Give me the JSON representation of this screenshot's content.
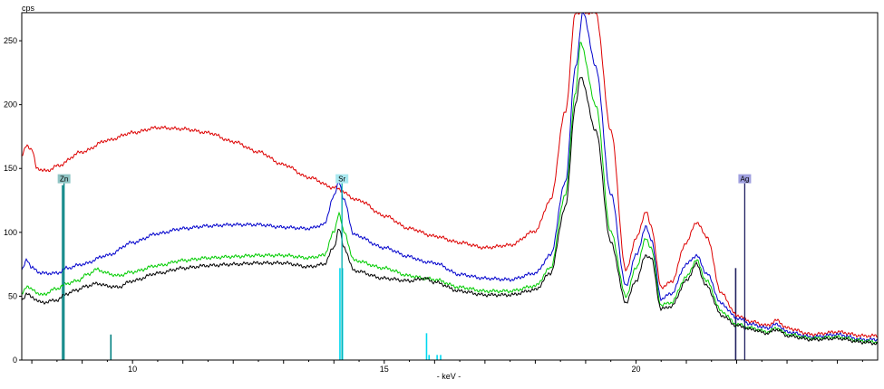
{
  "chart_data": {
    "type": "line",
    "title": "",
    "ylabel": "cps",
    "xlabel": "- keV -",
    "xlim": [
      7.8,
      24.8
    ],
    "ylim": [
      0,
      272
    ],
    "x_ticks": [
      10,
      15,
      20
    ],
    "y_ticks": [
      0,
      50,
      100,
      150,
      200,
      250
    ],
    "grid": false,
    "legend": "none",
    "series": [
      {
        "color": "#dd0000",
        "x": [
          7.8,
          7.9,
          8.0,
          8.1,
          8.3,
          8.5,
          9.0,
          9.5,
          10.0,
          10.5,
          11.0,
          11.5,
          12.0,
          12.5,
          13.0,
          13.5,
          14.0,
          14.5,
          15.0,
          15.5,
          16.0,
          16.5,
          17.0,
          17.5,
          18.0,
          18.3,
          18.6,
          18.8,
          18.9,
          19.2,
          19.5,
          19.8,
          20.0,
          20.2,
          20.3,
          20.5,
          20.7,
          21.0,
          21.2,
          21.4,
          21.7,
          22.0,
          22.3,
          22.6,
          22.8,
          23.0,
          23.5,
          24.0,
          24.5,
          24.8
        ],
        "values": [
          160,
          168,
          165,
          150,
          148,
          152,
          163,
          172,
          178,
          182,
          181,
          178,
          171,
          163,
          153,
          143,
          135,
          125,
          113,
          103,
          97,
          92,
          88,
          90,
          101,
          125,
          195,
          272,
          272,
          272,
          180,
          70,
          95,
          116,
          105,
          57,
          61,
          92,
          108,
          97,
          52,
          35,
          30,
          27,
          31,
          25,
          20,
          22,
          19,
          19
        ]
      },
      {
        "color": "#0000cc",
        "x": [
          7.8,
          7.9,
          8.0,
          8.2,
          8.5,
          8.7,
          9.0,
          9.5,
          10.0,
          10.5,
          11.0,
          11.5,
          12.0,
          12.5,
          13.0,
          13.5,
          13.8,
          14.0,
          14.1,
          14.2,
          14.4,
          15.0,
          15.5,
          15.8,
          16.0,
          16.5,
          17.0,
          17.5,
          18.0,
          18.3,
          18.6,
          18.8,
          18.95,
          19.2,
          19.5,
          19.8,
          20.0,
          20.2,
          20.3,
          20.5,
          20.7,
          21.0,
          21.2,
          21.4,
          21.7,
          22.0,
          22.3,
          22.6,
          22.8,
          23.0,
          23.5,
          24.0,
          24.5,
          24.8
        ],
        "values": [
          70,
          79,
          72,
          68,
          68,
          72,
          75,
          82,
          92,
          99,
          103,
          105,
          106,
          106,
          104,
          103,
          106,
          128,
          140,
          125,
          98,
          88,
          81,
          77,
          76,
          67,
          64,
          63,
          68,
          82,
          140,
          230,
          272,
          230,
          130,
          58,
          82,
          104,
          95,
          48,
          52,
          75,
          82,
          68,
          44,
          33,
          28,
          25,
          28,
          22,
          18,
          20,
          16,
          16
        ]
      },
      {
        "color": "#00cc00",
        "x": [
          7.8,
          7.9,
          8.0,
          8.2,
          8.5,
          8.7,
          8.9,
          9.1,
          9.3,
          9.5,
          9.7,
          10.0,
          10.5,
          11.0,
          11.5,
          12.0,
          12.5,
          13.0,
          13.5,
          13.8,
          14.0,
          14.1,
          14.2,
          14.4,
          15.0,
          15.5,
          15.8,
          16.0,
          16.5,
          17.0,
          17.5,
          18.0,
          18.3,
          18.6,
          18.8,
          18.9,
          19.2,
          19.5,
          19.8,
          20.0,
          20.2,
          20.3,
          20.5,
          20.7,
          21.0,
          21.2,
          21.4,
          21.7,
          22.0,
          22.3,
          22.6,
          22.8,
          23.0,
          23.5,
          24.0,
          24.5,
          24.8
        ],
        "values": [
          52,
          58,
          55,
          51,
          56,
          60,
          62,
          67,
          71,
          68,
          66,
          69,
          74,
          78,
          80,
          81,
          82,
          82,
          80,
          82,
          100,
          115,
          100,
          78,
          72,
          66,
          64,
          63,
          57,
          54,
          54,
          58,
          72,
          130,
          210,
          248,
          200,
          100,
          50,
          72,
          95,
          88,
          43,
          45,
          65,
          78,
          62,
          38,
          28,
          25,
          22,
          25,
          20,
          17,
          18,
          15,
          14
        ]
      },
      {
        "color": "#000000",
        "x": [
          7.8,
          7.9,
          8.0,
          8.2,
          8.5,
          8.7,
          8.9,
          9.1,
          9.3,
          9.5,
          9.7,
          10.0,
          10.5,
          11.0,
          11.5,
          12.0,
          12.5,
          13.0,
          13.5,
          13.8,
          14.0,
          14.1,
          14.2,
          14.4,
          15.0,
          15.5,
          15.8,
          16.0,
          16.5,
          17.0,
          17.5,
          18.0,
          18.3,
          18.6,
          18.8,
          18.9,
          19.2,
          19.5,
          19.8,
          20.0,
          20.2,
          20.3,
          20.5,
          20.7,
          21.0,
          21.2,
          21.4,
          21.7,
          22.0,
          22.3,
          22.6,
          22.8,
          23.0,
          23.5,
          24.0,
          24.5,
          24.8
        ],
        "values": [
          47,
          52,
          49,
          45,
          47,
          52,
          55,
          58,
          60,
          58,
          57,
          62,
          68,
          72,
          74,
          75,
          76,
          76,
          73,
          75,
          88,
          103,
          88,
          70,
          64,
          62,
          64,
          61,
          54,
          51,
          51,
          55,
          68,
          120,
          200,
          222,
          180,
          92,
          45,
          62,
          82,
          80,
          40,
          42,
          62,
          75,
          58,
          35,
          27,
          24,
          21,
          24,
          19,
          16,
          17,
          14,
          13
        ]
      }
    ],
    "element_markers": [
      {
        "label": "Zn",
        "x": 8.64,
        "height": 137,
        "color": "#008080",
        "tag_fill": "#8fc4c4"
      },
      {
        "label": "Sr",
        "x": 14.16,
        "height": 137,
        "color": "#00aaaa",
        "tag_fill": "#a8e8f0"
      },
      {
        "label": "Ag",
        "x": 22.16,
        "height": 137,
        "color": "#202060",
        "tag_fill": "#a0a0e0"
      }
    ],
    "lines_bars": [
      {
        "x": 8.61,
        "height": 137,
        "color": "#008080"
      },
      {
        "x": 9.57,
        "height": 20,
        "color": "#008080"
      },
      {
        "x": 14.12,
        "height": 72,
        "color": "#00d8f0"
      },
      {
        "x": 14.17,
        "height": 72,
        "color": "#00d8f0"
      },
      {
        "x": 15.84,
        "height": 21,
        "color": "#00d8f0"
      },
      {
        "x": 15.89,
        "height": 4,
        "color": "#00d8f0"
      },
      {
        "x": 16.05,
        "height": 4,
        "color": "#00d8f0"
      },
      {
        "x": 16.12,
        "height": 4,
        "color": "#00d8f0"
      },
      {
        "x": 21.98,
        "height": 72,
        "color": "#202060"
      }
    ]
  }
}
